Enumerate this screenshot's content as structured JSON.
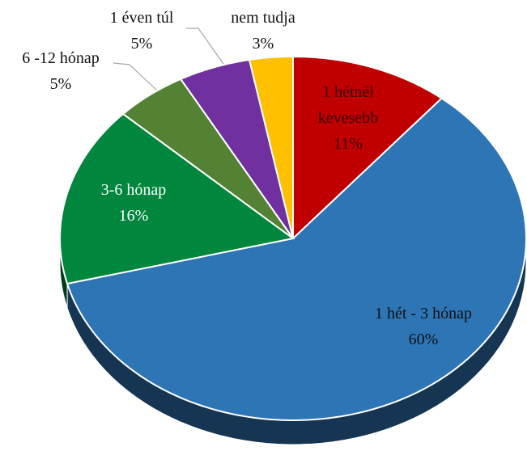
{
  "chart_data": {
    "type": "pie3d",
    "categories": [
      "1 hétnél kevesebb",
      "1 hét - 3 hónap",
      "3-6 hónap",
      "6 -12 hónap",
      "1 éven túl",
      "nem tudja"
    ],
    "values": [
      11,
      60,
      16,
      5,
      5,
      3
    ],
    "value_labels": [
      "11%",
      "60%",
      "16%",
      "5%",
      "5%",
      "3%"
    ],
    "colors": [
      "#c00000",
      "#2e75b6",
      "#00863d",
      "#548235",
      "#7030a0",
      "#ffc000"
    ]
  }
}
